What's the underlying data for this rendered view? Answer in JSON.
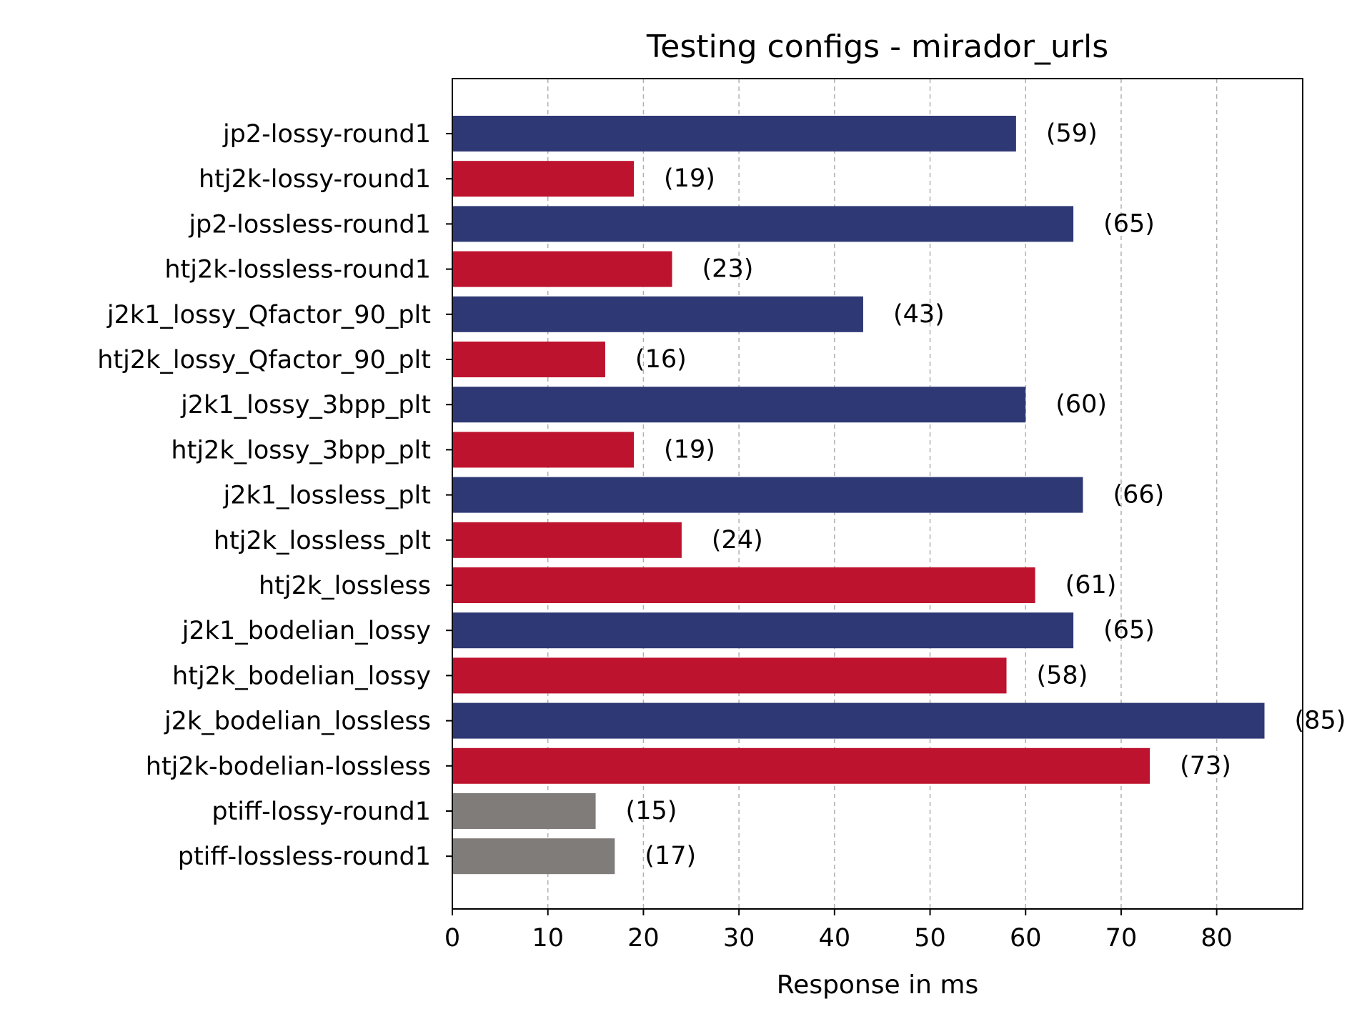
{
  "chart_data": {
    "type": "bar",
    "orientation": "horizontal",
    "title": "Testing configs - mirador_urls",
    "xlabel": "Response in ms",
    "ylabel": "",
    "xlim": [
      0,
      89
    ],
    "xticks": [
      0,
      10,
      20,
      30,
      40,
      50,
      60,
      70,
      80
    ],
    "grid": "x-dashed",
    "colors": {
      "jp2": "#2e3874",
      "htj2k": "#bd132e",
      "ptiff": "#807c7a"
    },
    "bars": [
      {
        "category": "jp2-lossy-round1",
        "value": 59,
        "label": "(59)",
        "group": "jp2"
      },
      {
        "category": "htj2k-lossy-round1",
        "value": 19,
        "label": "(19)",
        "group": "htj2k"
      },
      {
        "category": "jp2-lossless-round1",
        "value": 65,
        "label": "(65)",
        "group": "jp2"
      },
      {
        "category": "htj2k-lossless-round1",
        "value": 23,
        "label": "(23)",
        "group": "htj2k"
      },
      {
        "category": "j2k1_lossy_Qfactor_90_plt",
        "value": 43,
        "label": "(43)",
        "group": "jp2"
      },
      {
        "category": "htj2k_lossy_Qfactor_90_plt",
        "value": 16,
        "label": "(16)",
        "group": "htj2k"
      },
      {
        "category": "j2k1_lossy_3bpp_plt",
        "value": 60,
        "label": "(60)",
        "group": "jp2"
      },
      {
        "category": "htj2k_lossy_3bpp_plt",
        "value": 19,
        "label": "(19)",
        "group": "htj2k"
      },
      {
        "category": "j2k1_lossless_plt",
        "value": 66,
        "label": "(66)",
        "group": "jp2"
      },
      {
        "category": "htj2k_lossless_plt",
        "value": 24,
        "label": "(24)",
        "group": "htj2k"
      },
      {
        "category": "htj2k_lossless",
        "value": 61,
        "label": "(61)",
        "group": "htj2k"
      },
      {
        "category": "j2k1_bodelian_lossy",
        "value": 65,
        "label": "(65)",
        "group": "jp2"
      },
      {
        "category": "htj2k_bodelian_lossy",
        "value": 58,
        "label": "(58)",
        "group": "htj2k"
      },
      {
        "category": "j2k_bodelian_lossless",
        "value": 85,
        "label": "(85)",
        "group": "jp2"
      },
      {
        "category": "htj2k-bodelian-lossless",
        "value": 73,
        "label": "(73)",
        "group": "htj2k"
      },
      {
        "category": "ptiff-lossy-round1",
        "value": 15,
        "label": "(15)",
        "group": "ptiff"
      },
      {
        "category": "ptiff-lossless-round1",
        "value": 17,
        "label": "(17)",
        "group": "ptiff"
      }
    ]
  }
}
